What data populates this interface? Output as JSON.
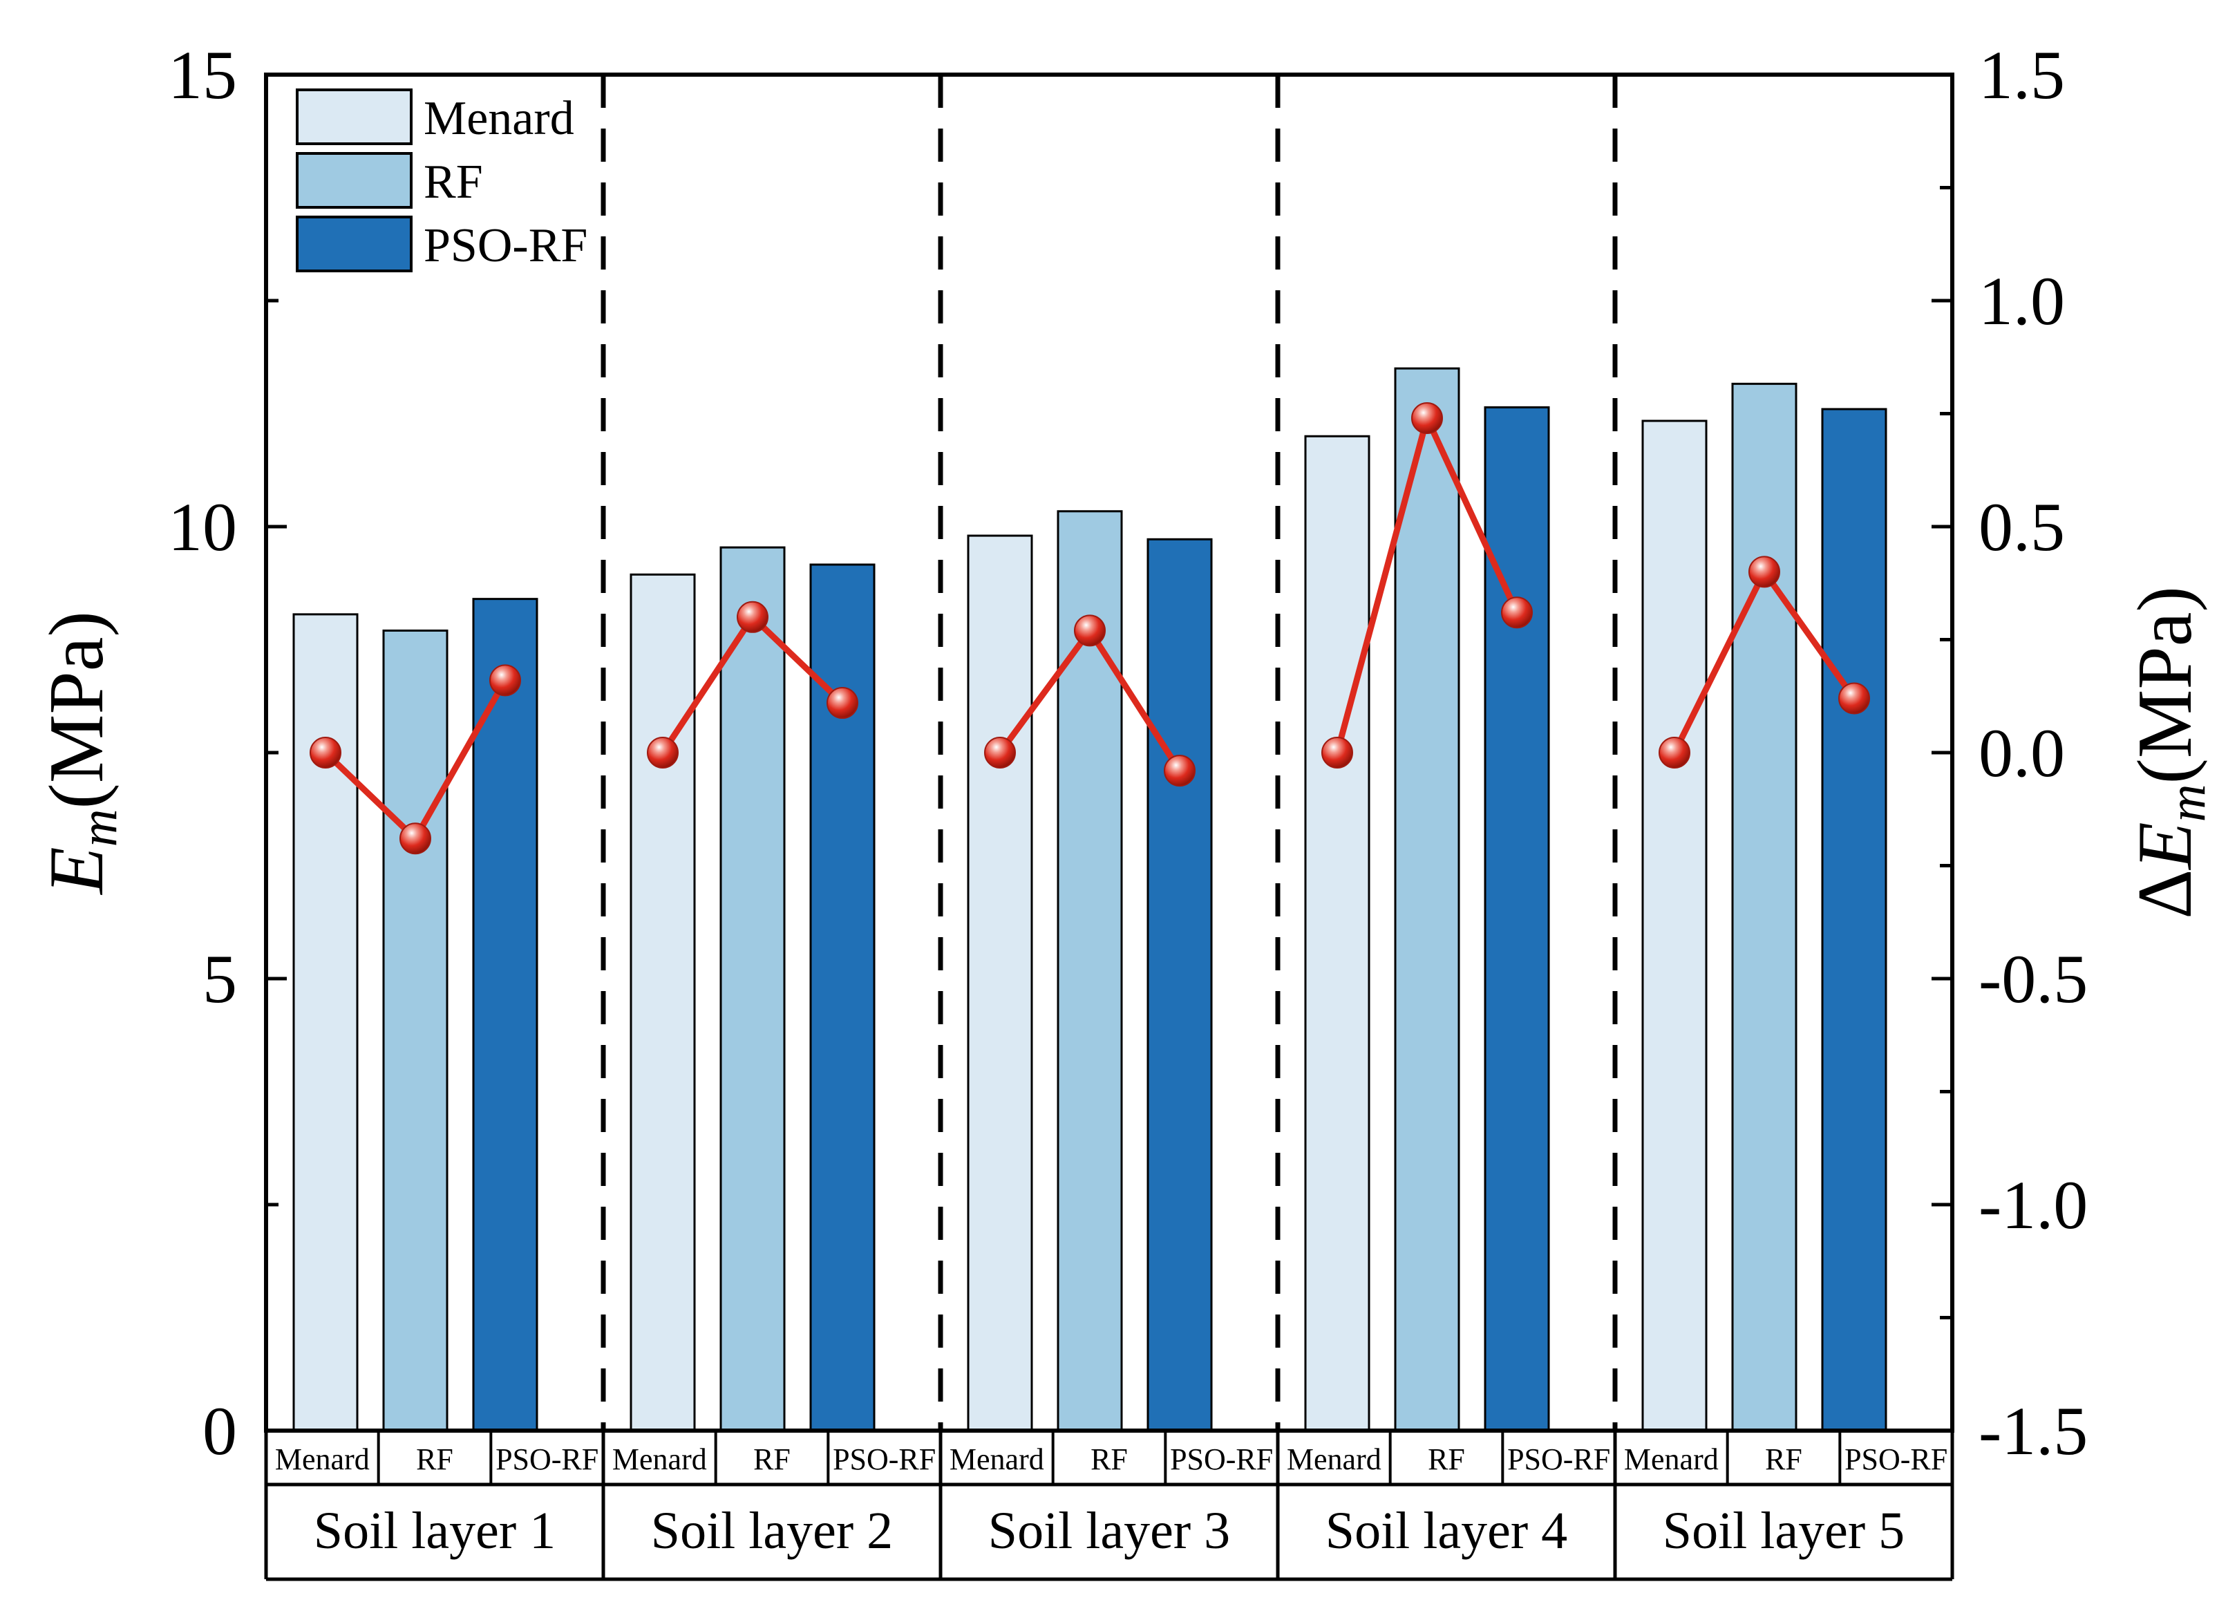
{
  "colors": {
    "menard": "#dbe9f3",
    "rf": "#9fcae2",
    "pso_rf": "#2070b6",
    "line": "#dd2a1d",
    "axis": "#000000"
  },
  "chart_data": {
    "type": "bar",
    "left_axis": {
      "label_main": "E",
      "label_sub": "m",
      "label_unit": "(MPa)",
      "range": [
        0,
        15
      ],
      "ticks": [
        0,
        5,
        10,
        15
      ],
      "tick_labels": [
        "0",
        "5",
        "10",
        "15"
      ]
    },
    "right_axis": {
      "label_prefix": "Δ",
      "label_main": "E",
      "label_sub": "m",
      "label_unit": "(MPa)",
      "range": [
        -1.5,
        1.5
      ],
      "ticks": [
        -1.5,
        -1.0,
        -0.5,
        0.0,
        0.5,
        1.0,
        1.5
      ],
      "tick_labels": [
        "-1.5",
        "-1.0",
        "-0.5",
        "0.0",
        "0.5",
        "1.0",
        "1.5"
      ]
    },
    "methods": [
      "Menard",
      "RF",
      "PSO-RF"
    ],
    "groups": [
      "Soil layer 1",
      "Soil layer 2",
      "Soil layer 3",
      "Soil layer 4",
      "Soil layer 5"
    ],
    "series": [
      {
        "name": "Menard",
        "values": [
          9.03,
          9.47,
          9.9,
          11.0,
          11.17
        ]
      },
      {
        "name": "RF",
        "values": [
          8.85,
          9.77,
          10.17,
          11.75,
          11.58
        ]
      },
      {
        "name": "PSO-RF",
        "values": [
          9.2,
          9.58,
          9.86,
          11.32,
          11.3
        ]
      }
    ],
    "delta_series": {
      "name": "ΔEm",
      "values": [
        [
          0.0,
          -0.19,
          0.16
        ],
        [
          0.0,
          0.3,
          0.11
        ],
        [
          0.0,
          0.27,
          -0.04
        ],
        [
          0.0,
          0.74,
          0.31
        ],
        [
          0.0,
          0.4,
          0.12
        ]
      ]
    },
    "legend": {
      "position": "top-left",
      "entries": [
        "Menard",
        "RF",
        "PSO-RF"
      ]
    },
    "group_separators": "dashed"
  }
}
